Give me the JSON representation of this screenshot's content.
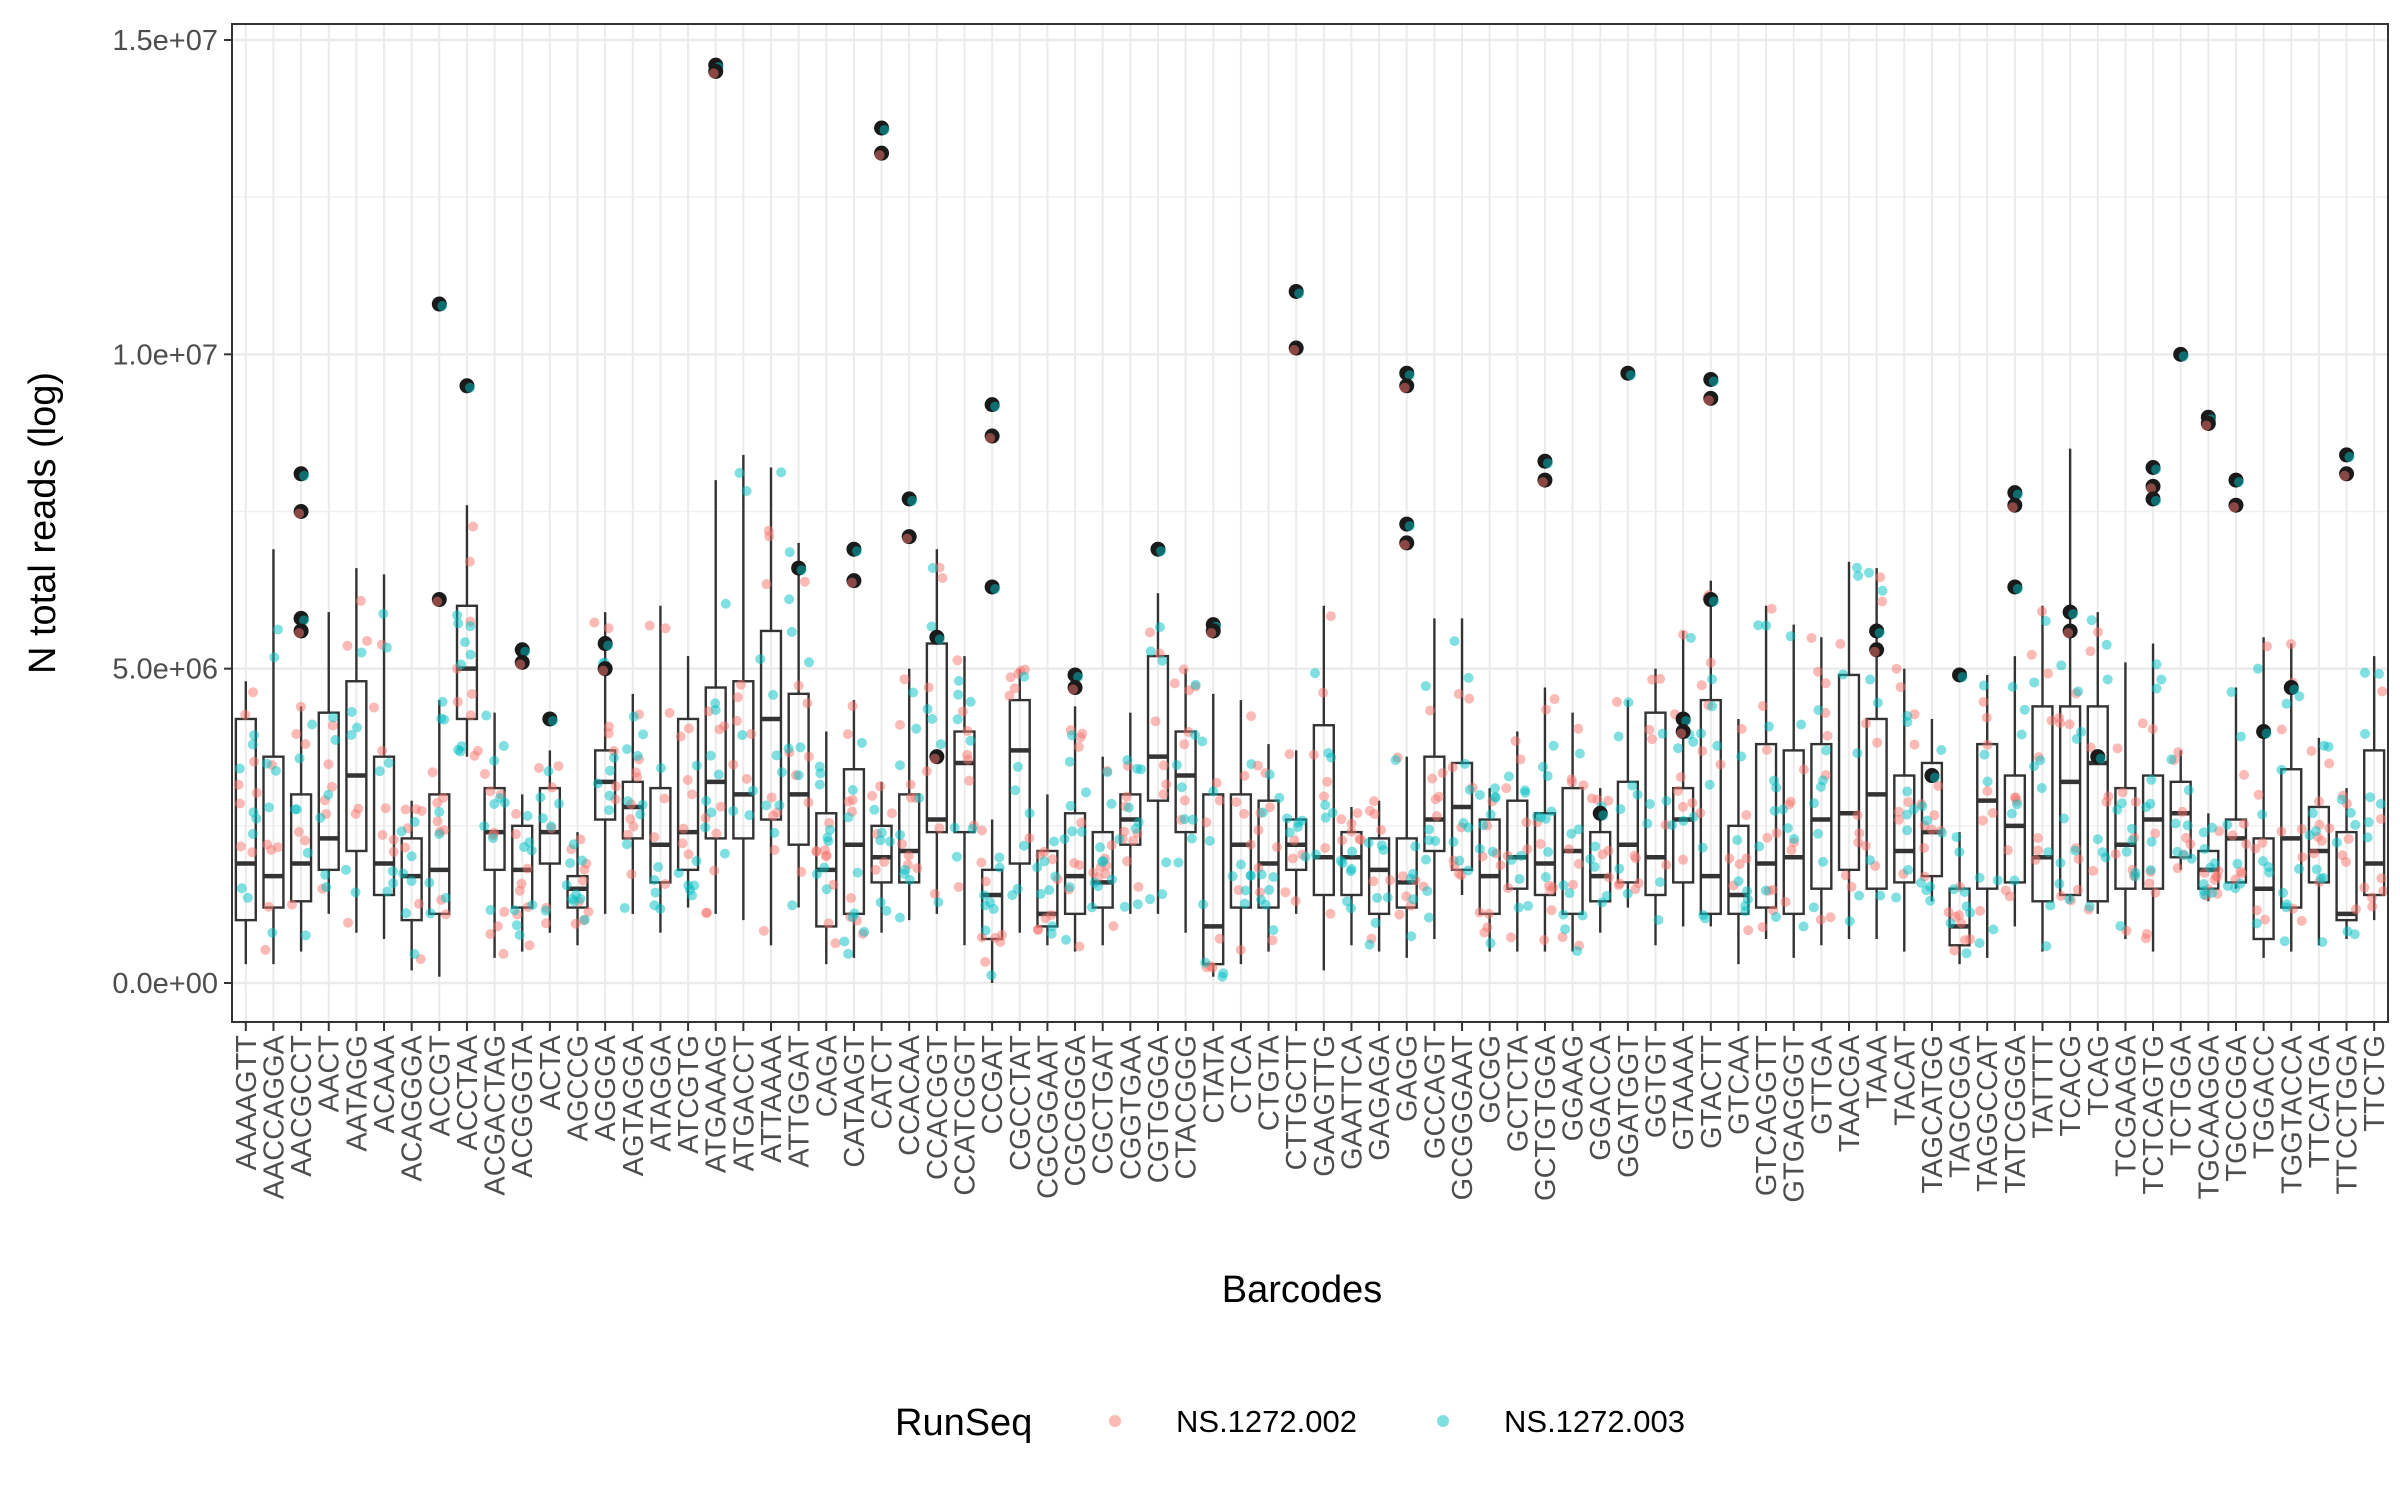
{
  "chart_data": {
    "type": "box+jitter",
    "title": "",
    "xlabel": "Barcodes",
    "ylabel": "N total reads (log)",
    "ylim": [
      0,
      15000000
    ],
    "y_ticks": [
      0,
      5000000,
      10000000,
      15000000
    ],
    "y_tick_labels": [
      "0.0e+00",
      "5.0e+06",
      "1.0e+07",
      "1.5e+07"
    ],
    "grid": true,
    "legend": {
      "title": "RunSeq",
      "position": "bottom",
      "entries": [
        {
          "name": "NS.1272.002",
          "color": "#F8766D"
        },
        {
          "name": "NS.1272.003",
          "color": "#00BFC4"
        }
      ]
    },
    "series": [
      {
        "name": "NS.1272.002",
        "color": "#F8766D"
      },
      {
        "name": "NS.1272.003",
        "color": "#00BFC4"
      }
    ],
    "categories": [
      "AAAAGTT",
      "AACCAGGA",
      "AACGCCT",
      "AACT",
      "AATAGG",
      "ACAAA",
      "ACAGGGA",
      "ACCGT",
      "ACCTAA",
      "ACGACTAG",
      "ACGGGTA",
      "ACTA",
      "AGCCG",
      "AGGGA",
      "AGTAGGA",
      "ATAGGA",
      "ATCGTG",
      "ATGAAAG",
      "ATGACCT",
      "ATTAAAA",
      "ATTGGAT",
      "CAGA",
      "CATAAGT",
      "CATCT",
      "CCACAA",
      "CCACGGT",
      "CCATCGGT",
      "CCGAT",
      "CGCCTAT",
      "CGCGGAAT",
      "CGCGGGA",
      "CGCTGAT",
      "CGGTGAA",
      "CGTGGGA",
      "CTACGGG",
      "CTATA",
      "CTCA",
      "CTGTA",
      "CTTGCTT",
      "GAAGTTG",
      "GAATTCA",
      "GAGAGA",
      "GAGG",
      "GCCAGT",
      "GCGGGAAT",
      "GCGG",
      "GCTCTA",
      "GCTGTGGA",
      "GGAAG",
      "GGACCA",
      "GGATGGT",
      "GGTGT",
      "GTAAAA",
      "GTACTT",
      "GTCAA",
      "GTCAGGTT",
      "GTGAGGGT",
      "GTTGA",
      "TAACGA",
      "TAAA",
      "TACAT",
      "TAGCATGG",
      "TAGCGGA",
      "TAGGCCAT",
      "TATCGGGA",
      "TATTTT",
      "TCACG",
      "TCAG",
      "TCGAAGA",
      "TCTCAGTG",
      "TCTGGA",
      "TGCAAGGA",
      "TGCCGGA",
      "TGGACC",
      "TGGTACCA",
      "TTCATGA",
      "TTCCTGGA",
      "TTCTG"
    ],
    "category_axis_labels": [
      "AAAAGTT",
      "AACCAGGA",
      "AACGCCT",
      "AACT",
      "AATAGG",
      "ACAAA",
      "ACAGGGA",
      "ACCGT",
      "ACCTAA",
      "ACGACTAG",
      "ACGGGTA",
      "ACTA",
      "AGCCG",
      "AGGGA",
      "AGTAGGA",
      "ATAGGA",
      "ATCGTG",
      "ATGAAAG",
      "ATGACCT",
      "ATTAAAA",
      "ATTGGAT",
      "CAGA",
      "CATAAGT",
      "CATCT",
      "CCACAA",
      "CCACGGT",
      "CCATCGGT",
      "CCGAT",
      "CGCCTAT",
      "CGCGGAAT",
      "CGCGGGA",
      "CGCTGAT",
      "CGGTGAA",
      "CGTGGGA",
      "CTACGGG",
      "CTATA",
      "CTCA",
      "CTGTA",
      "CTTGCTT",
      "GAAGTTG",
      "GAATTCA",
      "GAGAGA",
      "GAGG",
      "GCCAGT",
      "GCGGGAAT",
      "GCGG",
      "GCTCTA",
      "GCTGTGGA",
      "GGAAG",
      "GGACCA",
      "GGATGGT",
      "GGTGT",
      "GTAAAA",
      "GTACTT",
      "GTCAA",
      "GTCAGGTT",
      "GTGAGGGT",
      "GTTGA",
      "TAACGA",
      "TAAA",
      "TACAT",
      "TAGCATGG",
      "TAGCGGA",
      "TAGGCCAT",
      "TATCGGGA",
      "TATTTT",
      "TCACG",
      "TCAG",
      "TCGAAGA",
      "TCTCAGTG",
      "TCTGGA",
      "TGCAAGGA",
      "TGCCGGA",
      "TGGACC",
      "TGGTACCA",
      "TTCATGA",
      "TTCCTGGA",
      "TTCTG"
    ],
    "boxes": [
      [
        300000,
        1000000,
        1900000,
        4200000,
        4800000
      ],
      [
        300000,
        1200000,
        1700000,
        3600000,
        6900000
      ],
      [
        500000,
        1300000,
        1900000,
        3000000,
        4400000
      ],
      [
        1100000,
        1800000,
        2300000,
        4300000,
        5900000
      ],
      [
        800000,
        2100000,
        3300000,
        4800000,
        6600000
      ],
      [
        700000,
        1400000,
        1900000,
        3600000,
        6500000
      ],
      [
        200000,
        1000000,
        1700000,
        2300000,
        2900000
      ],
      [
        100000,
        1100000,
        1800000,
        3000000,
        4500000
      ],
      [
        3600000,
        4200000,
        5000000,
        6000000,
        7600000
      ],
      [
        400000,
        1800000,
        2400000,
        3100000,
        4300000
      ],
      [
        500000,
        1200000,
        1800000,
        2500000,
        3000000
      ],
      [
        800000,
        1900000,
        2400000,
        3100000,
        3700000
      ],
      [
        600000,
        1200000,
        1500000,
        1700000,
        2400000
      ],
      [
        1100000,
        2600000,
        3200000,
        3700000,
        5900000
      ],
      [
        1100000,
        2300000,
        2800000,
        3200000,
        4600000
      ],
      [
        800000,
        1600000,
        2200000,
        3100000,
        6000000
      ],
      [
        1200000,
        1800000,
        2400000,
        4200000,
        5200000
      ],
      [
        1100000,
        2300000,
        3200000,
        4700000,
        8000000
      ],
      [
        1000000,
        2300000,
        3000000,
        4800000,
        8400000
      ],
      [
        600000,
        2600000,
        4200000,
        5600000,
        8200000
      ],
      [
        1200000,
        2200000,
        3000000,
        4600000,
        7000000
      ],
      [
        300000,
        900000,
        1800000,
        2700000,
        4000000
      ],
      [
        400000,
        1100000,
        2200000,
        3400000,
        4500000
      ],
      [
        800000,
        1600000,
        2000000,
        2500000,
        3200000
      ],
      [
        1000000,
        1600000,
        2100000,
        3000000,
        5000000
      ],
      [
        1100000,
        2400000,
        2600000,
        5400000,
        6900000
      ],
      [
        600000,
        2400000,
        3500000,
        4000000,
        5200000
      ],
      [
        0,
        700000,
        1400000,
        1800000,
        2600000
      ],
      [
        800000,
        1900000,
        3700000,
        4500000,
        5000000
      ],
      [
        600000,
        900000,
        1100000,
        2100000,
        3000000
      ],
      [
        500000,
        1100000,
        1700000,
        2700000,
        4400000
      ],
      [
        600000,
        1200000,
        1600000,
        2400000,
        3600000
      ],
      [
        1100000,
        2200000,
        2600000,
        3000000,
        4300000
      ],
      [
        1100000,
        2900000,
        3600000,
        5200000,
        6200000
      ],
      [
        800000,
        2400000,
        3300000,
        4000000,
        5000000
      ],
      [
        100000,
        300000,
        900000,
        3000000,
        4600000
      ],
      [
        300000,
        1200000,
        2200000,
        3000000,
        4500000
      ],
      [
        500000,
        1200000,
        1900000,
        2900000,
        3800000
      ],
      [
        1100000,
        1800000,
        2200000,
        2600000,
        3700000
      ],
      [
        200000,
        1400000,
        2000000,
        4100000,
        6000000
      ],
      [
        600000,
        1400000,
        2000000,
        2400000,
        2800000
      ],
      [
        500000,
        1100000,
        1800000,
        2300000,
        2900000
      ],
      [
        400000,
        1200000,
        1600000,
        2300000,
        3600000
      ],
      [
        700000,
        2100000,
        2600000,
        3600000,
        5800000
      ],
      [
        1400000,
        1800000,
        2800000,
        3500000,
        5800000
      ],
      [
        500000,
        1100000,
        1700000,
        2600000,
        3100000
      ],
      [
        500000,
        1500000,
        2000000,
        2900000,
        4000000
      ],
      [
        500000,
        1400000,
        1900000,
        2700000,
        4700000
      ],
      [
        500000,
        1100000,
        2100000,
        3100000,
        4300000
      ],
      [
        800000,
        1300000,
        1700000,
        2400000,
        3100000
      ],
      [
        1200000,
        1600000,
        2200000,
        3200000,
        4500000
      ],
      [
        600000,
        1400000,
        2000000,
        4300000,
        5000000
      ],
      [
        900000,
        1600000,
        2600000,
        3100000,
        5600000
      ],
      [
        900000,
        1100000,
        1700000,
        4500000,
        6400000
      ],
      [
        300000,
        1100000,
        1400000,
        2500000,
        4200000
      ],
      [
        700000,
        1200000,
        1900000,
        3800000,
        6000000
      ],
      [
        400000,
        1100000,
        2000000,
        3700000,
        5700000
      ],
      [
        600000,
        1500000,
        2600000,
        3800000,
        5500000
      ],
      [
        700000,
        1800000,
        2700000,
        4900000,
        6700000
      ],
      [
        700000,
        1500000,
        3000000,
        4200000,
        6600000
      ],
      [
        500000,
        1600000,
        2100000,
        3300000,
        5000000
      ],
      [
        1300000,
        1700000,
        2400000,
        3500000,
        4200000
      ],
      [
        300000,
        600000,
        900000,
        1500000,
        2400000
      ],
      [
        400000,
        1500000,
        2900000,
        3800000,
        4900000
      ],
      [
        900000,
        1600000,
        2500000,
        3300000,
        5200000
      ],
      [
        500000,
        1300000,
        2000000,
        4400000,
        6000000
      ],
      [
        1300000,
        1400000,
        3200000,
        4400000,
        8500000
      ],
      [
        1100000,
        1300000,
        3500000,
        4400000,
        5900000
      ],
      [
        700000,
        1500000,
        2200000,
        3100000,
        5100000
      ],
      [
        500000,
        1500000,
        2600000,
        3300000,
        5400000
      ],
      [
        1800000,
        2000000,
        2700000,
        3200000,
        3700000
      ],
      [
        1300000,
        1500000,
        1800000,
        2100000,
        2700000
      ],
      [
        1500000,
        1600000,
        2300000,
        2600000,
        4700000
      ],
      [
        400000,
        700000,
        1500000,
        2300000,
        5500000
      ],
      [
        500000,
        1200000,
        2300000,
        3400000,
        5400000
      ],
      [
        600000,
        1600000,
        2100000,
        2800000,
        3900000
      ],
      [
        700000,
        1000000,
        1100000,
        2400000,
        3100000
      ],
      [
        1000000,
        1400000,
        1900000,
        3700000,
        5200000
      ]
    ],
    "outliers": [
      {
        "category": "ACCGT",
        "values": [
          10800000,
          6100000
        ]
      },
      {
        "category": "ACCTAA",
        "values": [
          9500000
        ]
      },
      {
        "category": "AACGCCT",
        "values": [
          8100000,
          7500000,
          5800000,
          5600000
        ]
      },
      {
        "category": "ACGGGTA",
        "values": [
          5300000,
          5100000
        ]
      },
      {
        "category": "AGGGA",
        "values": [
          5400000,
          5000000
        ]
      },
      {
        "category": "ACTA",
        "values": [
          4200000
        ]
      },
      {
        "category": "ATGAAAG",
        "values": [
          14600000,
          14500000
        ]
      },
      {
        "category": "ATTGGAT",
        "values": [
          6600000
        ]
      },
      {
        "category": "CATAAGT",
        "values": [
          6900000,
          6400000
        ]
      },
      {
        "category": "CATCT",
        "values": [
          13600000,
          13200000
        ]
      },
      {
        "category": "CCACAA",
        "values": [
          7700000,
          7100000
        ]
      },
      {
        "category": "CCACGGT",
        "values": [
          5500000,
          3600000
        ]
      },
      {
        "category": "CCGAT",
        "values": [
          9200000,
          8700000,
          6300000
        ]
      },
      {
        "category": "CGCGGGA",
        "values": [
          4900000,
          4700000
        ]
      },
      {
        "category": "CGTGGGA",
        "values": [
          6900000
        ]
      },
      {
        "category": "CTATA",
        "values": [
          5700000,
          5600000
        ]
      },
      {
        "category": "CTTGCTT",
        "values": [
          11000000,
          10100000
        ]
      },
      {
        "category": "GAGG",
        "values": [
          9700000,
          9500000,
          7300000,
          7000000
        ]
      },
      {
        "category": "GCTGTGGA",
        "values": [
          8300000,
          8000000
        ]
      },
      {
        "category": "GGATGGT",
        "values": [
          9700000
        ]
      },
      {
        "category": "GGACCA",
        "values": [
          2700000
        ]
      },
      {
        "category": "GTACTT",
        "values": [
          9600000,
          9300000,
          6100000
        ]
      },
      {
        "category": "GTAAAA",
        "values": [
          4200000,
          4000000
        ]
      },
      {
        "category": "TAAA",
        "values": [
          5600000,
          5300000
        ]
      },
      {
        "category": "TAGCATGG",
        "values": [
          3300000
        ]
      },
      {
        "category": "TAGCGGA",
        "values": [
          4900000
        ]
      },
      {
        "category": "TATCGGGA",
        "values": [
          7800000,
          7600000,
          6300000
        ]
      },
      {
        "category": "TCACG",
        "values": [
          5900000,
          5600000
        ]
      },
      {
        "category": "TCAG",
        "values": [
          3600000
        ]
      },
      {
        "category": "TCTCAGTG",
        "values": [
          8200000,
          7900000,
          7700000
        ]
      },
      {
        "category": "TCTGGA",
        "values": [
          10000000
        ]
      },
      {
        "category": "TGCAAGGA",
        "values": [
          9000000,
          8900000
        ]
      },
      {
        "category": "TGCCGGA",
        "values": [
          8000000,
          7600000
        ]
      },
      {
        "category": "TGGACC",
        "values": [
          4000000
        ]
      },
      {
        "category": "TGGTACCA",
        "values": [
          4700000
        ]
      },
      {
        "category": "TTCCTGGA",
        "values": [
          8400000,
          8100000
        ]
      }
    ]
  }
}
